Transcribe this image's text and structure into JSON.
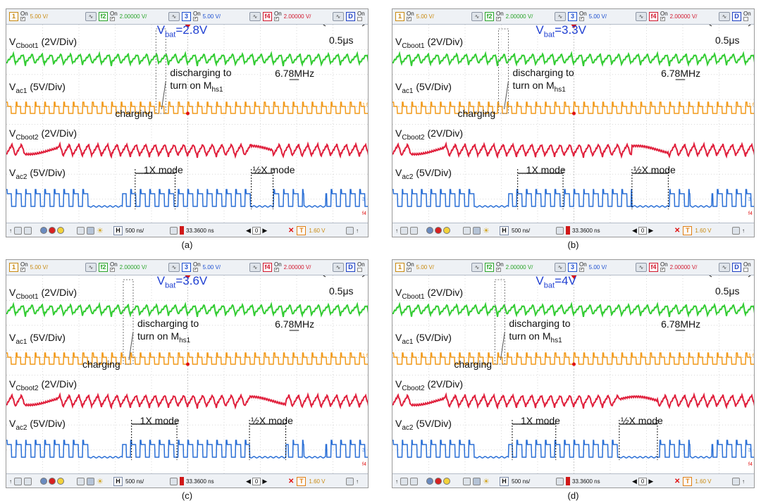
{
  "toolbar": {
    "ch1": {
      "num": "1",
      "on": "On",
      "value": "5.00 V/"
    },
    "f2": {
      "num": "f2",
      "on": "On",
      "value": "2.00000 V/"
    },
    "ch3": {
      "num": "3",
      "on": "On",
      "value": "5.00 V/"
    },
    "f4": {
      "num": "f4",
      "on": "On",
      "value": "2.00000 V/"
    },
    "d": {
      "num": "D",
      "on": "On"
    },
    "time_label": "H",
    "time_div": "500 ns/",
    "delay": "33.3600 ns",
    "nav_value": "0",
    "trig_label": "T",
    "trig_level": "1.60 V"
  },
  "colors": {
    "cboot1": "#33cc33",
    "ac1": "#f29a1a",
    "cboot2": "#e0203c",
    "ac2": "#2a6fd6",
    "vbat": "#1f3fd1",
    "marker": "#e01010"
  },
  "trace_labels": {
    "cboot1": {
      "main": "V",
      "sub": "Cboot1",
      "div": " (2V/Div)"
    },
    "ac1": {
      "main": "V",
      "sub": "ac1",
      "div": " (5V/Div)"
    },
    "cboot2": {
      "main": "V",
      "sub": "Cboot2",
      "div": " (2V/Div)"
    },
    "ac2": {
      "main": "V",
      "sub": "ac2",
      "div": " (5V/Div)"
    }
  },
  "annotations": {
    "time_scale": "0.5μs",
    "freq": "6.78MHz",
    "discharging_1": "discharging to",
    "discharging_2": "turn on M",
    "discharging_sub": "hs1",
    "charging": "charging",
    "mode_1x": "1X mode",
    "mode_half": "½X mode",
    "vbat_prefix": "V",
    "vbat_sub": "bat",
    "channel_markers": [
      "1",
      "f2",
      "3",
      "f4"
    ]
  },
  "chart_data": [
    {
      "type": "line",
      "panel": "(a)",
      "vbat": "=2.8V",
      "time_per_div": "500 ns/",
      "switching_frequency_mhz": 6.78,
      "series": [
        {
          "name": "VCboot1",
          "scale": "2V/Div"
        },
        {
          "name": "Vac1",
          "scale": "5V/Div"
        },
        {
          "name": "VCboot2",
          "scale": "2V/Div"
        },
        {
          "name": "Vac2",
          "scale": "5V/Div"
        }
      ],
      "modes": [
        "1X mode",
        "½X mode"
      ]
    },
    {
      "type": "line",
      "panel": "(b)",
      "vbat": "=3.3V",
      "time_per_div": "500 ns/",
      "switching_frequency_mhz": 6.78,
      "series": [
        {
          "name": "VCboot1",
          "scale": "2V/Div"
        },
        {
          "name": "Vac1",
          "scale": "5V/Div"
        },
        {
          "name": "VCboot2",
          "scale": "2V/Div"
        },
        {
          "name": "Vac2",
          "scale": "5V/Div"
        }
      ],
      "modes": [
        "1X mode",
        "½X mode"
      ]
    },
    {
      "type": "line",
      "panel": "(c)",
      "vbat": "=3.6V",
      "time_per_div": "500 ns/",
      "switching_frequency_mhz": 6.78,
      "series": [
        {
          "name": "VCboot1",
          "scale": "2V/Div"
        },
        {
          "name": "Vac1",
          "scale": "5V/Div"
        },
        {
          "name": "VCboot2",
          "scale": "2V/Div"
        },
        {
          "name": "Vac2",
          "scale": "5V/Div"
        }
      ],
      "modes": [
        "1X mode",
        "½X mode"
      ]
    },
    {
      "type": "line",
      "panel": "(d)",
      "vbat": "=4V",
      "time_per_div": "500 ns/",
      "switching_frequency_mhz": 6.78,
      "series": [
        {
          "name": "VCboot1",
          "scale": "2V/Div"
        },
        {
          "name": "Vac1",
          "scale": "5V/Div"
        },
        {
          "name": "VCboot2",
          "scale": "2V/Div"
        },
        {
          "name": "Vac2",
          "scale": "5V/Div"
        }
      ],
      "modes": [
        "1X mode",
        "½X mode"
      ]
    }
  ]
}
